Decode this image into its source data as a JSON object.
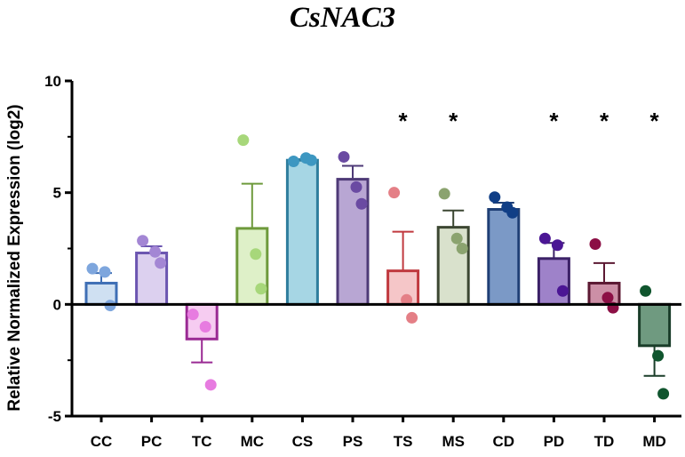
{
  "chart_data": {
    "type": "bar",
    "title": "CsNAC3",
    "xlabel": "",
    "ylabel": "Relative Normalized Expression (log2)",
    "ylim": [
      -5,
      10
    ],
    "yticks": [
      -5,
      0,
      5,
      10
    ],
    "significance_marker": "*",
    "categories": [
      {
        "label": "CC",
        "mean": 0.95,
        "sem": 0.45,
        "points": [
          1.6,
          1.45,
          -0.05
        ],
        "significant": false,
        "fill": "#cfe0f2",
        "stroke": "#3f6fb5",
        "dot": "#7ea6dd"
      },
      {
        "label": "PC",
        "mean": 2.3,
        "sem": 0.3,
        "points": [
          2.85,
          2.35,
          1.85
        ],
        "significant": false,
        "fill": "#dcd0ef",
        "stroke": "#6b55b0",
        "dot": "#a386d4"
      },
      {
        "label": "TC",
        "mean": -1.55,
        "sem": 1.05,
        "points": [
          -0.45,
          -1.0,
          -3.6
        ],
        "significant": false,
        "fill": "#f6ccf1",
        "stroke": "#9a2a93",
        "dot": "#e77be0"
      },
      {
        "label": "MC",
        "mean": 3.4,
        "sem": 2.0,
        "points": [
          7.35,
          2.25,
          0.7
        ],
        "significant": false,
        "fill": "#def0c8",
        "stroke": "#6e9a3c",
        "dot": "#a7d77a"
      },
      {
        "label": "CS",
        "mean": 6.45,
        "sem": 0.05,
        "points": [
          6.4,
          6.55,
          6.45
        ],
        "significant": false,
        "fill": "#a6d6e4",
        "stroke": "#2e7d9d",
        "dot": "#3d97c1"
      },
      {
        "label": "PS",
        "mean": 5.6,
        "sem": 0.6,
        "points": [
          6.6,
          5.25,
          4.5
        ],
        "significant": false,
        "fill": "#b8a6d3",
        "stroke": "#4e3a77",
        "dot": "#6a4aa2"
      },
      {
        "label": "TS",
        "mean": 1.5,
        "sem": 1.75,
        "points": [
          5.0,
          0.2,
          -0.6
        ],
        "significant": true,
        "fill": "#f5c6c8",
        "stroke": "#c0393f",
        "dot": "#e47f86"
      },
      {
        "label": "MS",
        "mean": 3.45,
        "sem": 0.75,
        "points": [
          4.95,
          2.95,
          2.5
        ],
        "significant": true,
        "fill": "#d9e1cc",
        "stroke": "#3c4732",
        "dot": "#8ba36f"
      },
      {
        "label": "CD",
        "mean": 4.25,
        "sem": 0.3,
        "points": [
          4.8,
          4.35,
          4.1
        ],
        "significant": false,
        "fill": "#7b99c6",
        "stroke": "#1f3f75",
        "dot": "#103e86"
      },
      {
        "label": "PD",
        "mean": 2.05,
        "sem": 0.7,
        "points": [
          2.95,
          2.65,
          0.6
        ],
        "significant": true,
        "fill": "#9e82c9",
        "stroke": "#3b2167",
        "dot": "#4b1694"
      },
      {
        "label": "TD",
        "mean": 0.95,
        "sem": 0.9,
        "points": [
          2.7,
          0.3,
          -0.15
        ],
        "significant": true,
        "fill": "#cc8fa6",
        "stroke": "#5c1933",
        "dot": "#8c0f45"
      },
      {
        "label": "MD",
        "mean": -1.85,
        "sem": 1.35,
        "points": [
          0.6,
          -2.3,
          -4.0
        ],
        "significant": true,
        "fill": "#6f9a80",
        "stroke": "#1a3d29",
        "dot": "#10552e"
      }
    ]
  }
}
